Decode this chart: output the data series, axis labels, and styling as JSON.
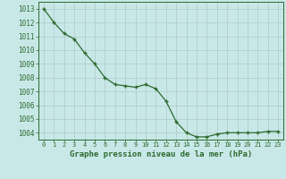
{
  "x": [
    0,
    1,
    2,
    3,
    4,
    5,
    6,
    7,
    8,
    9,
    10,
    11,
    12,
    13,
    14,
    15,
    16,
    17,
    18,
    19,
    20,
    21,
    22,
    23
  ],
  "y": [
    1013.0,
    1012.0,
    1011.2,
    1010.8,
    1009.8,
    1009.0,
    1008.0,
    1007.5,
    1007.4,
    1007.3,
    1007.5,
    1007.2,
    1006.3,
    1004.8,
    1004.0,
    1003.7,
    1003.7,
    1003.9,
    1004.0,
    1004.0,
    1004.0,
    1004.0,
    1004.1,
    1004.1
  ],
  "ylim": [
    1003.5,
    1013.5
  ],
  "xlim": [
    -0.5,
    23.5
  ],
  "yticks": [
    1004,
    1005,
    1006,
    1007,
    1008,
    1009,
    1010,
    1011,
    1012,
    1013
  ],
  "xticks": [
    0,
    1,
    2,
    3,
    4,
    5,
    6,
    7,
    8,
    9,
    10,
    11,
    12,
    13,
    14,
    15,
    16,
    17,
    18,
    19,
    20,
    21,
    22,
    23
  ],
  "xlabel": "Graphe pression niveau de la mer (hPa)",
  "line_color": "#2d6a2d",
  "marker": "+",
  "bg_color": "#c8e8e8",
  "grid_color": "#b0c8c8",
  "tick_color": "#2d6a2d",
  "label_color": "#2d6a2d",
  "xlabel_fontsize": 6.5,
  "ytick_fontsize": 5.5,
  "xtick_fontsize": 5.0
}
